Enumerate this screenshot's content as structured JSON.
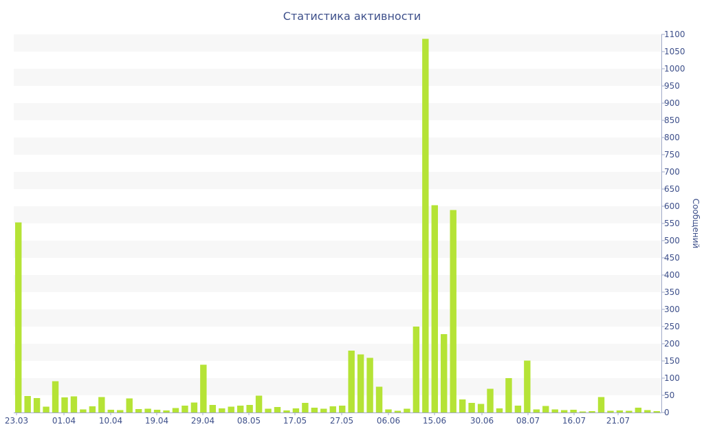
{
  "chart_data": {
    "type": "bar",
    "title": "Статистика активности",
    "xlabel": "",
    "ylabel": "Сообщений",
    "ylim": [
      0,
      1100
    ],
    "y_ticks": [
      0,
      50,
      100,
      150,
      200,
      250,
      300,
      350,
      400,
      450,
      500,
      550,
      600,
      650,
      700,
      750,
      800,
      850,
      900,
      950,
      1000,
      1050,
      1100
    ],
    "x_tick_labels": [
      "23.03",
      "01.04",
      "10.04",
      "19.04",
      "29.04",
      "08.05",
      "17.05",
      "27.05",
      "06.06",
      "15.06",
      "30.06",
      "08.07",
      "16.07",
      "21.07"
    ],
    "y_axis_side": "right",
    "grid": "alternating horizontal bands",
    "bar_color": "#b5e336",
    "band_color": "#f7f7f7",
    "text_color": "#3d4f8a",
    "values": [
      553,
      48,
      42,
      17,
      91,
      44,
      47,
      9,
      18,
      45,
      8,
      7,
      41,
      10,
      11,
      8,
      6,
      13,
      20,
      29,
      139,
      22,
      12,
      17,
      20,
      22,
      49,
      11,
      16,
      6,
      12,
      28,
      14,
      11,
      18,
      20,
      180,
      169,
      159,
      75,
      9,
      5,
      11,
      250,
      1087,
      603,
      228,
      589,
      38,
      28,
      25,
      69,
      12,
      100,
      20,
      151,
      9,
      19,
      9,
      7,
      8,
      3,
      4,
      45,
      5,
      6,
      5,
      14,
      7,
      4
    ]
  }
}
